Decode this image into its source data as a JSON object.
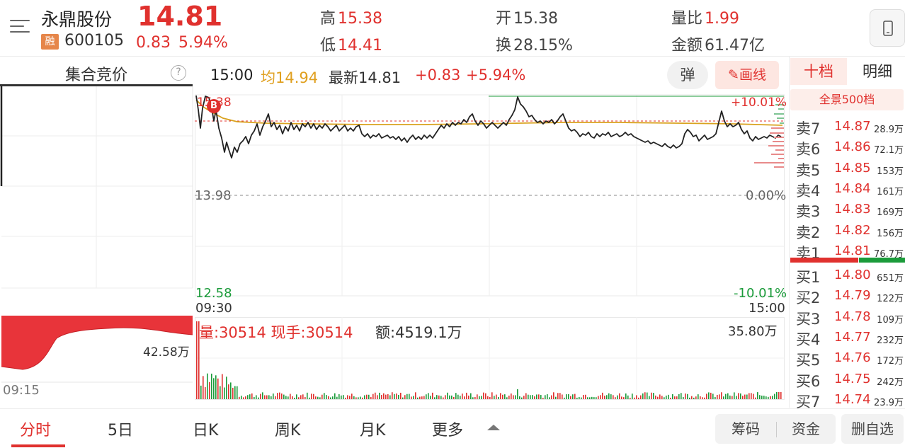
{
  "header": {
    "name": "永鼎股份",
    "price": "14.81",
    "margin_badge": "融",
    "code": "600105",
    "change": "0.83",
    "change_pct": "5.94%",
    "high_label": "高",
    "high": "15.38",
    "low_label": "低",
    "low": "14.41",
    "open_label": "开",
    "open": "15.38",
    "turnover_label": "换",
    "turnover": "28.15%",
    "vol_ratio_label": "量比",
    "vol_ratio": "1.99",
    "amount_label": "金额",
    "amount": "61.47亿"
  },
  "auction": {
    "title": "集合竞价",
    "help": "?",
    "start_time": "09:15",
    "volume": "42.58万"
  },
  "chart_header": {
    "time": "15:00",
    "avg": "均14.94",
    "last": "最新14.81",
    "change": "+0.83",
    "change_pct": "+5.94%",
    "danmu": "弹",
    "draw": "✎画线"
  },
  "chart": {
    "high_pct": "+10.01%",
    "prev_close": "13.98",
    "zero_pct": "0.00%",
    "low_price": "12.58",
    "low_pct": "-10.01%",
    "start": "09:30",
    "end": "15:00",
    "price_label": "15.38",
    "buy_marker": "B"
  },
  "volume": {
    "info": "量:30514  现手:30514",
    "amount": "额:4519.1万",
    "max": "35.80万"
  },
  "right": {
    "tab1": "十档",
    "tab2": "明细",
    "full": "全景500档",
    "asks": [
      {
        "label": "卖7",
        "price": "14.87",
        "vol": "28.9万"
      },
      {
        "label": "卖6",
        "price": "14.86",
        "vol": "72.1万"
      },
      {
        "label": "卖5",
        "price": "14.85",
        "vol": "153万"
      },
      {
        "label": "卖4",
        "price": "14.84",
        "vol": "161万"
      },
      {
        "label": "卖3",
        "price": "14.83",
        "vol": "169万"
      },
      {
        "label": "卖2",
        "price": "14.82",
        "vol": "156万"
      },
      {
        "label": "卖1",
        "price": "14.81",
        "vol": "76.7万"
      }
    ],
    "bids": [
      {
        "label": "买1",
        "price": "14.80",
        "vol": "651万"
      },
      {
        "label": "买2",
        "price": "14.79",
        "vol": "122万"
      },
      {
        "label": "买3",
        "price": "14.78",
        "vol": "109万"
      },
      {
        "label": "买4",
        "price": "14.77",
        "vol": "232万"
      },
      {
        "label": "买5",
        "price": "14.76",
        "vol": "172万"
      },
      {
        "label": "买6",
        "price": "14.75",
        "vol": "242万"
      },
      {
        "label": "买7",
        "price": "14.74",
        "vol": "23.9万"
      }
    ]
  },
  "bottom": {
    "tabs": [
      "分时",
      "5日",
      "日K",
      "周K",
      "月K",
      "更多"
    ],
    "chip": "筹码",
    "fund": "资金",
    "remove": "删自选"
  },
  "colors": {
    "up": "#e0312e",
    "down": "#1b9b3a",
    "avg": "#e0a020"
  }
}
